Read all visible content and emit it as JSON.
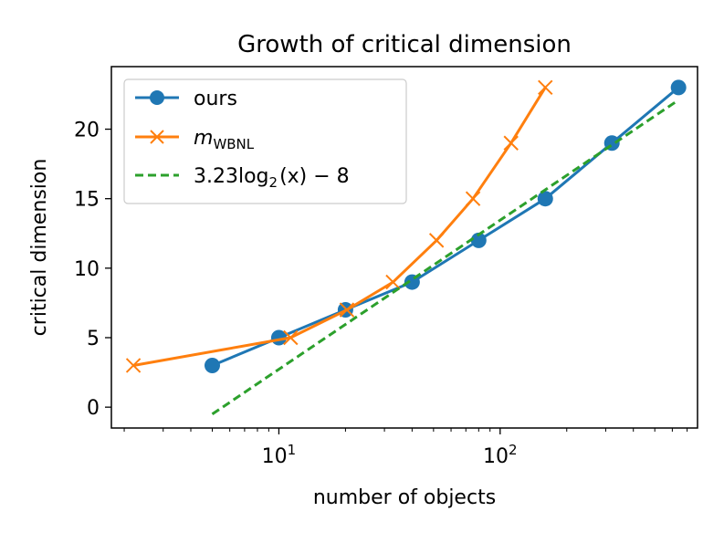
{
  "chart_data": {
    "type": "line",
    "title": "Growth of critical dimension",
    "xlabel": "number of objects",
    "ylabel": "critical dimension",
    "xscale": "log",
    "xlim": [
      1.75,
      780
    ],
    "ylim": [
      -1.5,
      24.5
    ],
    "yticks": [
      0,
      5,
      10,
      15,
      20
    ],
    "ytick_labels": [
      "0",
      "5",
      "10",
      "15",
      "20"
    ],
    "xticks_major": [
      10,
      100
    ],
    "xtick_labels": [
      {
        "base": "10",
        "exp": "1"
      },
      {
        "base": "10",
        "exp": "2"
      }
    ],
    "legend_position": "upper-left",
    "series": [
      {
        "name": "ours",
        "color": "#1f77b4",
        "marker": "circle",
        "linestyle": "solid",
        "x": [
          5,
          10,
          20,
          40,
          80,
          160,
          320,
          640
        ],
        "y": [
          3,
          5,
          7,
          9,
          12,
          15,
          19,
          23
        ]
      },
      {
        "name": "mWBNL",
        "legend_main": "m",
        "legend_sub": "WBNL",
        "color": "#ff7f0e",
        "marker": "x",
        "linestyle": "solid",
        "x": [
          2.2,
          11.3,
          20.3,
          32.8,
          51.6,
          75.4,
          112,
          160
        ],
        "y": [
          3,
          5,
          7,
          9,
          12,
          15,
          19,
          23
        ]
      },
      {
        "name": "3.23log2(x) - 8",
        "legend_pre": "3.23log",
        "legend_sub": "2",
        "legend_post": "(x) − 8",
        "color": "#2ca02c",
        "marker": "none",
        "linestyle": "dashed",
        "x": [
          5,
          640
        ],
        "y": [
          -0.5,
          22.1
        ]
      }
    ]
  }
}
